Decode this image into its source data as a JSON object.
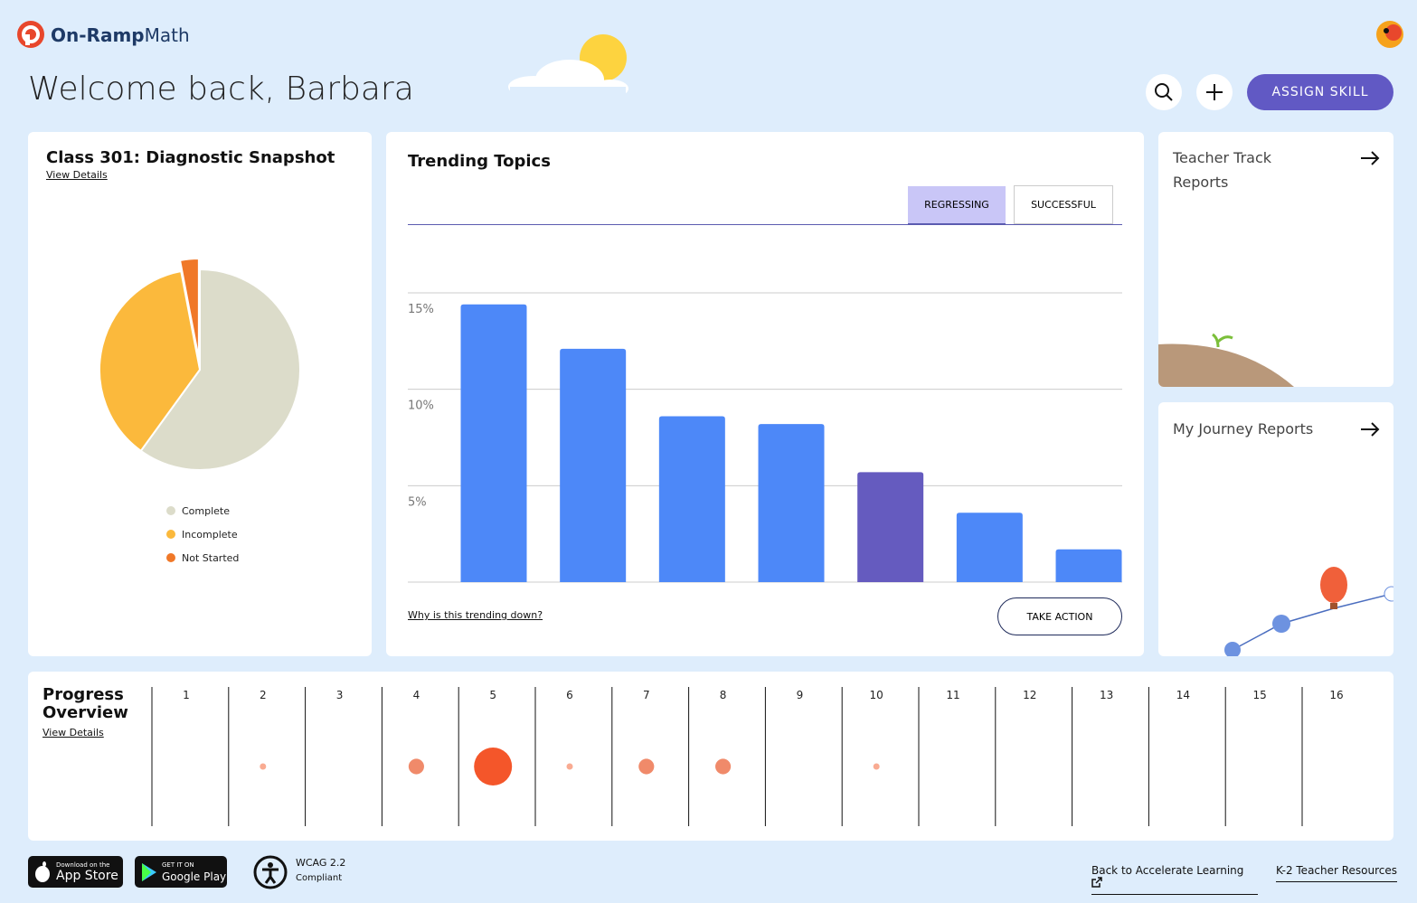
{
  "brand": {
    "name_bold": "On-Ramp",
    "name": "Math"
  },
  "header": {
    "welcome": "Welcome back, Barbara",
    "assign_button": "ASSIGN SKILL"
  },
  "snapshot": {
    "title": "Class 301: Diagnostic Snapshot",
    "link": "View Details",
    "type": "pie",
    "slices": [
      {
        "name": "Complete",
        "value": 60,
        "color": "#dcdcca"
      },
      {
        "name": "Incomplete",
        "value": 37,
        "color": "#fbb93c"
      },
      {
        "name": "Not Started",
        "value": 3,
        "color": "#f07828"
      }
    ]
  },
  "trending": {
    "title": "Trending Topics",
    "tabs": [
      "REGRESSING",
      "SUCCESSFUL"
    ],
    "type": "bar",
    "categories": [
      null,
      null,
      null,
      null,
      null,
      null,
      null
    ],
    "values": [
      14.4,
      12.1,
      8.6,
      8.2,
      5.7,
      3.6,
      1.7
    ],
    "colors": [
      "#4d88f8",
      "#4d88f8",
      "#4d88f8",
      "#4d88f8",
      "#655bbf",
      "#4d88f8",
      "#4d88f8"
    ],
    "ylim": [
      0,
      15
    ],
    "yticks": [
      {
        "value": 5,
        "label": "5%"
      },
      {
        "value": 10,
        "label": "10%"
      },
      {
        "value": 15,
        "label": "15%"
      }
    ],
    "grid": true,
    "link": "Why is this trending down?",
    "button": "TAKE ACTION"
  },
  "reports": [
    {
      "title": "Teacher Track Reports"
    },
    {
      "title": "My Journey Reports"
    }
  ],
  "progress": {
    "title": "Progress Overview",
    "link": "View Details",
    "columns": [
      1,
      2,
      3,
      4,
      5,
      6,
      7,
      8,
      9,
      10,
      11,
      12,
      13,
      14,
      15,
      16
    ],
    "values": [
      null,
      1,
      null,
      6,
      36,
      1,
      6,
      6,
      null,
      1,
      null,
      null,
      null,
      null,
      null,
      null
    ],
    "colors": [
      null,
      "#f9ab92",
      null,
      "#f08a6a",
      "#f4562a",
      "#f9ab92",
      "#f08a6a",
      "#f08a6a",
      null,
      "#f9ab92",
      null,
      null,
      null,
      null,
      null,
      null
    ]
  },
  "footer": {
    "app_store": [
      "Download on the",
      "App Store"
    ],
    "google_play": [
      "GET IT ON",
      "Google Play"
    ],
    "wcag": [
      "WCAG 2.2",
      "Compliant"
    ],
    "links": [
      "Back to Accelerate Learning",
      "K-2 Teacher Resources"
    ]
  }
}
